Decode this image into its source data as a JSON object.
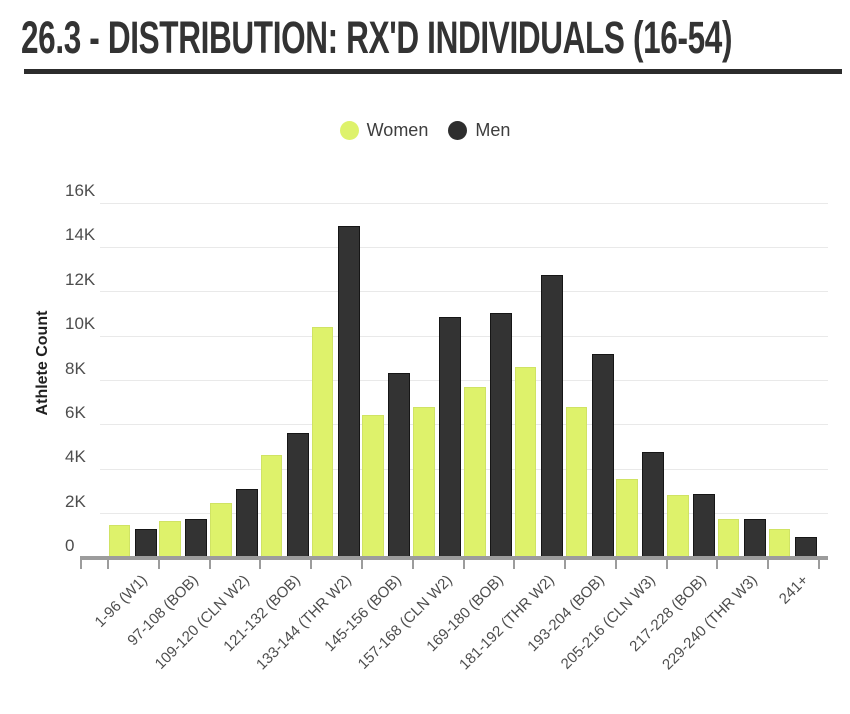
{
  "title": "26.3 - DISTRIBUTION: RX'D INDIVIDUALS (16-54)",
  "legend": {
    "items": [
      {
        "label": "Women",
        "color": "#def26b"
      },
      {
        "label": "Men",
        "color": "#2e2e2e"
      }
    ]
  },
  "y_axis": {
    "title": "Athlete Count",
    "tick_labels": [
      "0",
      "2K",
      "4K",
      "6K",
      "8K",
      "10K",
      "12K",
      "14K",
      "16K"
    ]
  },
  "colors": {
    "women": "#def26b",
    "men": "#333333",
    "men_border": "#161616",
    "axis": "#9c9c9c",
    "gridline": "#e9e9e9",
    "title_text": "#333333"
  },
  "chart_data": {
    "type": "bar",
    "title": "26.3 - DISTRIBUTION: RX'D INDIVIDUALS (16-54)",
    "xlabel": "",
    "ylabel": "Athlete Count",
    "ylim": [
      0,
      16000
    ],
    "ytick_step": 2000,
    "grid": true,
    "legend_position": "top-center",
    "categories": [
      "1-96 (W1)",
      "97-108 (BOB)",
      "109-120 (CLN W2)",
      "121-132 (BOB)",
      "133-144 (THR W2)",
      "145-156 (BOB)",
      "157-168 (CLN W2)",
      "169-180 (BOB)",
      "181-192 (THR W2)",
      "193-204 (BOB)",
      "205-216 (CLN W3)",
      "217-228 (BOB)",
      "229-240 (THR W3)",
      "241+"
    ],
    "series": [
      {
        "name": "Women",
        "color": "#def26b",
        "values": [
          1500,
          1650,
          2500,
          4650,
          10400,
          6450,
          6800,
          7700,
          8600,
          6800,
          3550,
          2850,
          1750,
          1300
        ]
      },
      {
        "name": "Men",
        "color": "#333333",
        "values": [
          1300,
          1750,
          3100,
          5650,
          14950,
          8350,
          10850,
          11050,
          12750,
          9200,
          4800,
          2900,
          1750,
          950
        ]
      }
    ]
  }
}
